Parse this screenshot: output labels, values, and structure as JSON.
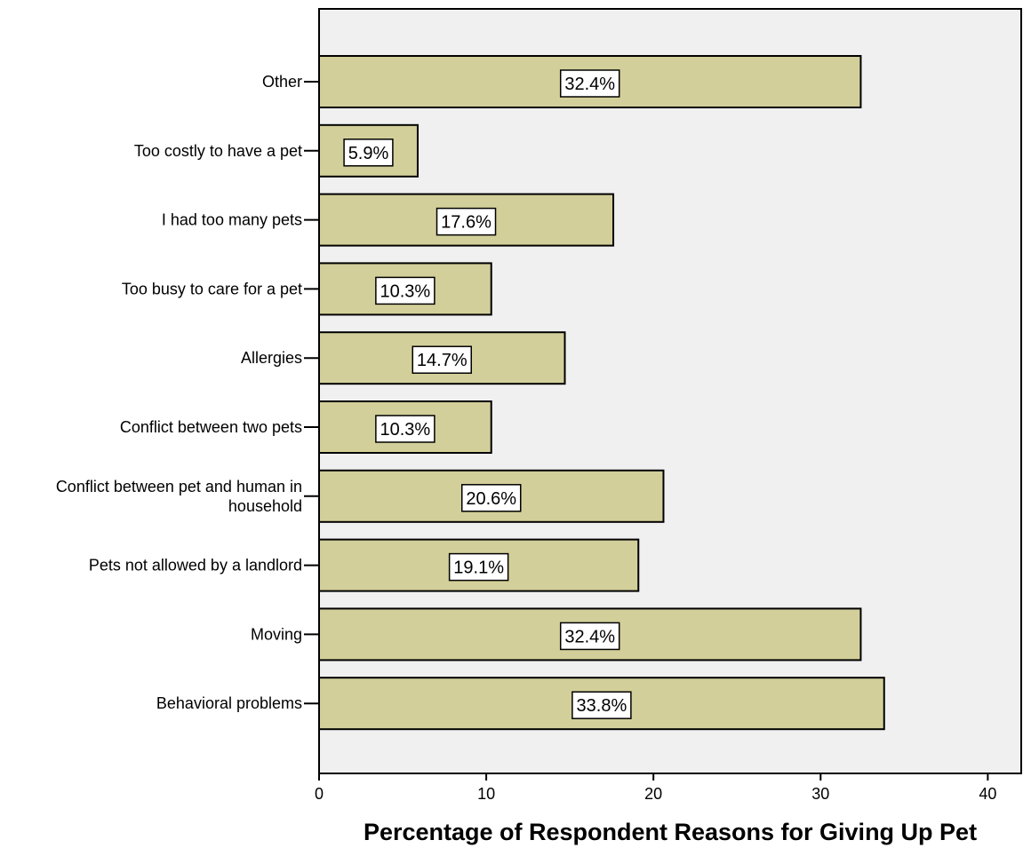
{
  "chart_data": {
    "type": "bar",
    "orientation": "horizontal",
    "categories": [
      "Other",
      "Too costly to have a pet",
      "I had too many pets",
      "Too busy to care for a pet",
      "Allergies",
      "Conflict between two pets",
      "Conflict between pet and human in household",
      "Pets not allowed by a landlord",
      "Moving",
      "Behavioral problems"
    ],
    "category_label_lines": [
      [
        "Other"
      ],
      [
        "Too costly to have a pet"
      ],
      [
        "I had too many pets"
      ],
      [
        "Too busy to care for a pet"
      ],
      [
        "Allergies"
      ],
      [
        "Conflict between two pets"
      ],
      [
        "Conflict between pet and human in",
        "household"
      ],
      [
        "Pets not allowed by a landlord"
      ],
      [
        "Moving"
      ],
      [
        "Behavioral problems"
      ]
    ],
    "values": [
      32.4,
      5.9,
      17.6,
      10.3,
      14.7,
      10.3,
      20.6,
      19.1,
      32.4,
      33.8
    ],
    "data_labels": [
      "32.4%",
      "5.9%",
      "17.6%",
      "10.3%",
      "14.7%",
      "10.3%",
      "20.6%",
      "19.1%",
      "32.4%",
      "33.8%"
    ],
    "title": "",
    "xlabel": "Percentage of Respondent Reasons for Giving Up Pet",
    "ylabel": "",
    "xlim": [
      0,
      42
    ],
    "xticks": [
      0,
      10,
      20,
      30,
      40
    ],
    "xtick_labels": [
      "0",
      "10",
      "20",
      "30",
      "40"
    ],
    "grid": false,
    "legend": "none",
    "colors": {
      "bar_fill": "#d3cf9a",
      "bar_stroke": "#000000",
      "plot_background": "#f0f0f0",
      "label_box_fill": "#ffffff"
    }
  }
}
